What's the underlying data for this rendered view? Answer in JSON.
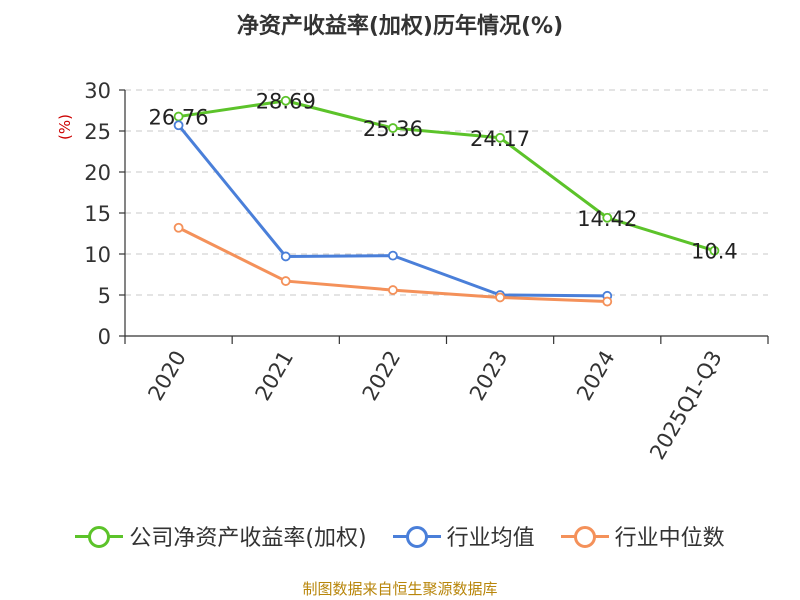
{
  "chart_data": {
    "type": "line",
    "title": "净资产收益率(加权)历年情况(%)",
    "ylabel": "(%)",
    "xlabel": "",
    "categories": [
      "2020",
      "2021",
      "2022",
      "2023",
      "2024",
      "2025Q1-Q3"
    ],
    "ylim": [
      0,
      30
    ],
    "yticks": [
      0,
      5,
      10,
      15,
      20,
      25,
      30
    ],
    "grid": true,
    "legend_position": "bottom",
    "series": [
      {
        "name": "公司净资产收益率(加权)",
        "color": "#5cc32a",
        "values": [
          26.76,
          28.69,
          25.36,
          24.17,
          14.42,
          10.4
        ],
        "labels": [
          "26.76",
          "28.69",
          "25.36",
          "24.17",
          "14.42",
          "10.4"
        ]
      },
      {
        "name": "行业均值",
        "color": "#4a7fd9",
        "values": [
          25.7,
          9.7,
          9.8,
          5.0,
          4.9,
          null
        ]
      },
      {
        "name": "行业中位数",
        "color": "#f4915a",
        "values": [
          13.2,
          6.7,
          5.6,
          4.7,
          4.2,
          null
        ]
      }
    ]
  },
  "footer": {
    "source": "制图数据来自恒生聚源数据库"
  }
}
